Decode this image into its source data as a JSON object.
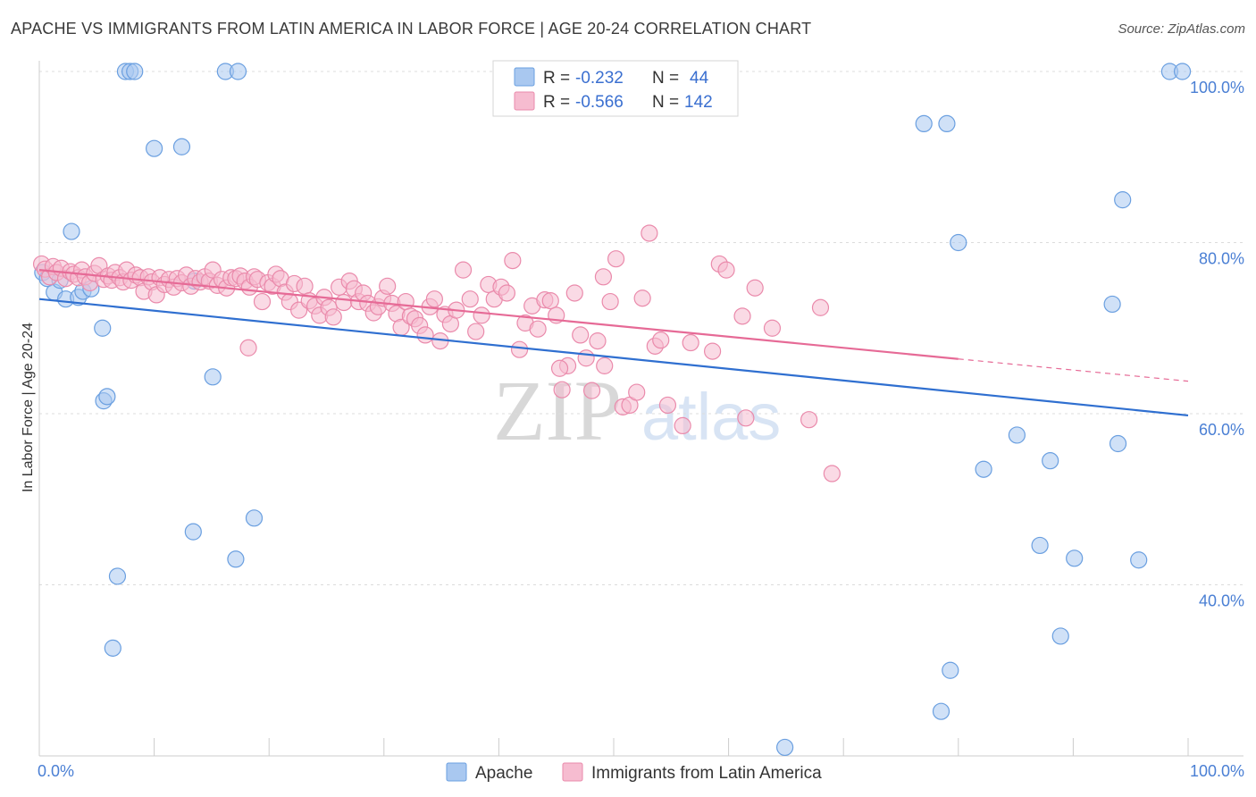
{
  "title": "APACHE VS IMMIGRANTS FROM LATIN AMERICA IN LABOR FORCE | AGE 20-24 CORRELATION CHART",
  "source": "Source: ZipAtlas.com",
  "watermark": {
    "zip": "ZIP",
    "atlas": "atlas"
  },
  "legend_top": {
    "rows": [
      {
        "r_label": "R =",
        "r_value": "-0.232",
        "n_label": "N =",
        "n_value": "44",
        "color": "#a9c8f0",
        "stroke": "#6a9fe0"
      },
      {
        "r_label": "R =",
        "r_value": "-0.566",
        "n_label": "N =",
        "n_value": "142",
        "color": "#f6bcd0",
        "stroke": "#ea8aab"
      }
    ]
  },
  "chart_data": {
    "type": "scatter",
    "title": "APACHE VS IMMIGRANTS FROM LATIN AMERICA IN LABOR FORCE | AGE 20-24 CORRELATION CHART",
    "xlabel": "",
    "ylabel": "In Labor Force | Age 20-24",
    "xlim": [
      0,
      100
    ],
    "ylim": [
      20,
      100
    ],
    "x_ticks": [
      {
        "v": 0,
        "label": "0.0%"
      },
      {
        "v": 100,
        "label": "100.0%"
      }
    ],
    "y_ticks": [
      {
        "v": 40,
        "label": "40.0%"
      },
      {
        "v": 60,
        "label": "60.0%"
      },
      {
        "v": 80,
        "label": "80.0%"
      },
      {
        "v": 100,
        "label": "100.0%"
      }
    ],
    "grid": true,
    "legend_position": "bottom",
    "series": [
      {
        "name": "Apache",
        "color": "#a9c8f0",
        "stroke": "#6a9fe0",
        "trend": {
          "x0": 0,
          "y0": 73.4,
          "x1": 100,
          "y1": 59.8,
          "dash_from": null
        },
        "trend_color": "#2f6fd0",
        "points": [
          [
            0.3,
            76.5
          ],
          [
            0.7,
            75.8
          ],
          [
            1.3,
            74.2
          ],
          [
            1.8,
            75.6
          ],
          [
            2.3,
            73.4
          ],
          [
            2.8,
            81.3
          ],
          [
            3.4,
            73.6
          ],
          [
            3.8,
            74.3
          ],
          [
            4.5,
            74.6
          ],
          [
            5.5,
            70.0
          ],
          [
            5.6,
            61.5
          ],
          [
            5.9,
            62.0
          ],
          [
            6.4,
            32.6
          ],
          [
            6.8,
            41.0
          ],
          [
            7.5,
            100
          ],
          [
            7.9,
            100
          ],
          [
            8.3,
            100
          ],
          [
            10.0,
            91.0
          ],
          [
            12.4,
            91.2
          ],
          [
            13.5,
            75.5
          ],
          [
            13.4,
            46.2
          ],
          [
            15.1,
            64.3
          ],
          [
            16.2,
            100
          ],
          [
            17.3,
            100
          ],
          [
            17.1,
            43.0
          ],
          [
            18.7,
            47.8
          ],
          [
            64.9,
            21.0
          ],
          [
            77.0,
            93.9
          ],
          [
            79.0,
            93.9
          ],
          [
            80.0,
            80.0
          ],
          [
            79.3,
            30.0
          ],
          [
            78.5,
            25.2
          ],
          [
            82.2,
            53.5
          ],
          [
            85.1,
            57.5
          ],
          [
            87.1,
            44.6
          ],
          [
            88.0,
            54.5
          ],
          [
            88.9,
            34.0
          ],
          [
            90.1,
            43.1
          ],
          [
            93.4,
            72.8
          ],
          [
            93.9,
            56.5
          ],
          [
            94.3,
            85.0
          ],
          [
            95.7,
            42.9
          ],
          [
            98.4,
            100
          ],
          [
            99.5,
            100
          ]
        ]
      },
      {
        "name": "Immigrants from Latin America",
        "color": "#f6bcd0",
        "stroke": "#ea8aab",
        "trend": {
          "x0": 0,
          "y0": 76.8,
          "x1": 100,
          "y1": 63.8,
          "dash_from": 80
        },
        "trend_color": "#e66a96",
        "points": [
          [
            0.2,
            77.5
          ],
          [
            0.5,
            76.9
          ],
          [
            0.9,
            76.0
          ],
          [
            1.2,
            77.2
          ],
          [
            1.5,
            76.5
          ],
          [
            1.9,
            77.0
          ],
          [
            2.3,
            75.8
          ],
          [
            2.7,
            76.6
          ],
          [
            3.0,
            76.3
          ],
          [
            3.4,
            75.9
          ],
          [
            3.7,
            76.8
          ],
          [
            4.0,
            76.0
          ],
          [
            4.4,
            75.3
          ],
          [
            4.8,
            76.4
          ],
          [
            5.2,
            77.3
          ],
          [
            5.6,
            75.7
          ],
          [
            6.0,
            76.1
          ],
          [
            6.3,
            75.6
          ],
          [
            6.6,
            76.5
          ],
          [
            7.0,
            75.9
          ],
          [
            7.3,
            75.4
          ],
          [
            7.6,
            76.8
          ],
          [
            8.0,
            75.6
          ],
          [
            8.4,
            76.2
          ],
          [
            8.8,
            75.9
          ],
          [
            9.1,
            74.3
          ],
          [
            9.5,
            76.0
          ],
          [
            9.8,
            75.4
          ],
          [
            10.2,
            73.9
          ],
          [
            10.5,
            75.9
          ],
          [
            10.9,
            75.1
          ],
          [
            11.3,
            75.7
          ],
          [
            11.7,
            74.8
          ],
          [
            12.0,
            75.8
          ],
          [
            12.4,
            75.3
          ],
          [
            12.8,
            76.2
          ],
          [
            13.2,
            74.9
          ],
          [
            13.6,
            75.8
          ],
          [
            14.0,
            75.4
          ],
          [
            14.4,
            76.0
          ],
          [
            14.8,
            75.5
          ],
          [
            15.1,
            76.8
          ],
          [
            15.5,
            75.0
          ],
          [
            15.9,
            75.7
          ],
          [
            16.3,
            74.7
          ],
          [
            16.7,
            75.9
          ],
          [
            17.1,
            75.8
          ],
          [
            17.5,
            76.1
          ],
          [
            17.9,
            75.5
          ],
          [
            18.3,
            74.8
          ],
          [
            18.7,
            76.0
          ],
          [
            19.0,
            75.7
          ],
          [
            19.4,
            73.1
          ],
          [
            19.9,
            75.3
          ],
          [
            20.3,
            74.9
          ],
          [
            20.6,
            76.3
          ],
          [
            21.0,
            75.8
          ],
          [
            21.4,
            74.2
          ],
          [
            21.8,
            73.1
          ],
          [
            22.2,
            75.2
          ],
          [
            22.6,
            72.1
          ],
          [
            23.1,
            74.9
          ],
          [
            23.5,
            73.2
          ],
          [
            24.0,
            72.6
          ],
          [
            24.4,
            71.5
          ],
          [
            24.8,
            73.6
          ],
          [
            25.2,
            72.4
          ],
          [
            25.6,
            71.3
          ],
          [
            26.1,
            74.8
          ],
          [
            26.5,
            73.0
          ],
          [
            27.0,
            75.5
          ],
          [
            27.4,
            74.6
          ],
          [
            27.8,
            73.1
          ],
          [
            28.2,
            74.1
          ],
          [
            28.6,
            72.9
          ],
          [
            29.1,
            71.8
          ],
          [
            29.5,
            72.5
          ],
          [
            29.9,
            73.5
          ],
          [
            30.3,
            74.9
          ],
          [
            30.7,
            72.9
          ],
          [
            31.1,
            71.7
          ],
          [
            31.5,
            70.1
          ],
          [
            31.9,
            73.1
          ],
          [
            32.3,
            71.4
          ],
          [
            32.7,
            71.1
          ],
          [
            33.1,
            70.3
          ],
          [
            33.6,
            69.2
          ],
          [
            34.0,
            72.5
          ],
          [
            34.4,
            73.4
          ],
          [
            34.9,
            68.5
          ],
          [
            35.3,
            71.6
          ],
          [
            35.8,
            70.5
          ],
          [
            36.3,
            72.1
          ],
          [
            36.9,
            76.8
          ],
          [
            37.5,
            73.4
          ],
          [
            38.0,
            69.6
          ],
          [
            38.5,
            71.5
          ],
          [
            39.1,
            75.1
          ],
          [
            39.6,
            73.4
          ],
          [
            40.2,
            74.8
          ],
          [
            40.7,
            74.1
          ],
          [
            41.2,
            77.9
          ],
          [
            41.8,
            67.5
          ],
          [
            42.3,
            70.6
          ],
          [
            42.9,
            72.6
          ],
          [
            43.4,
            69.9
          ],
          [
            44.0,
            73.3
          ],
          [
            44.5,
            73.2
          ],
          [
            45.0,
            71.5
          ],
          [
            45.5,
            62.8
          ],
          [
            46.0,
            65.6
          ],
          [
            46.6,
            74.1
          ],
          [
            47.1,
            69.2
          ],
          [
            47.6,
            66.5
          ],
          [
            48.1,
            62.7
          ],
          [
            48.6,
            68.5
          ],
          [
            49.1,
            76.0
          ],
          [
            49.7,
            73.1
          ],
          [
            50.2,
            78.1
          ],
          [
            50.8,
            60.8
          ],
          [
            51.4,
            61.0
          ],
          [
            52.0,
            62.5
          ],
          [
            52.5,
            73.5
          ],
          [
            53.1,
            81.1
          ],
          [
            53.6,
            67.9
          ],
          [
            54.1,
            68.6
          ],
          [
            54.7,
            61.0
          ],
          [
            56.7,
            68.3
          ],
          [
            58.6,
            67.3
          ],
          [
            59.2,
            77.5
          ],
          [
            59.8,
            76.8
          ],
          [
            61.2,
            71.4
          ],
          [
            62.3,
            74.7
          ],
          [
            63.8,
            70.0
          ],
          [
            68.0,
            72.4
          ],
          [
            45.3,
            65.3
          ],
          [
            49.2,
            65.6
          ],
          [
            56.0,
            58.6
          ],
          [
            61.5,
            59.5
          ],
          [
            67.0,
            59.3
          ],
          [
            69.0,
            53.0
          ],
          [
            18.2,
            67.7
          ]
        ]
      }
    ]
  }
}
